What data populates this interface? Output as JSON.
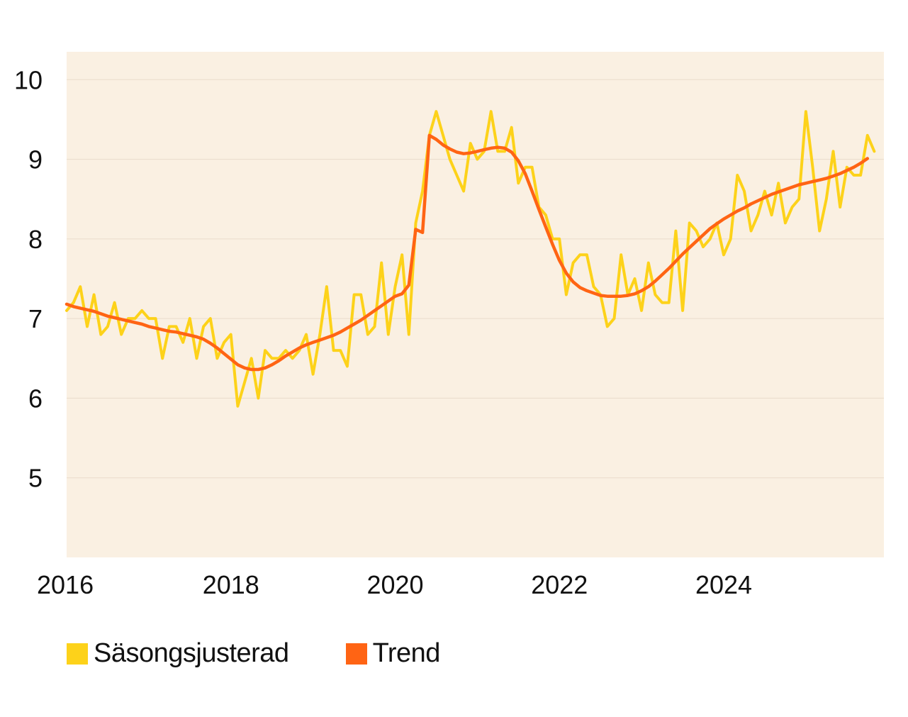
{
  "chart_data": {
    "type": "line",
    "plot_background": "#faf0e2",
    "grid": true,
    "ylim": [
      4,
      10.35
    ],
    "xlim": [
      2016.0,
      2025.95
    ],
    "yticks": [
      5,
      6,
      7,
      8,
      9,
      10
    ],
    "ytick_labels": [
      "5",
      "6",
      "7",
      "8",
      "9",
      "10"
    ],
    "xticks": [
      2016,
      2018,
      2020,
      2022,
      2024
    ],
    "xtick_labels": [
      "2016",
      "2018",
      "2020",
      "2022",
      "2024"
    ],
    "legend_position": "bottom-left",
    "series": [
      {
        "name": "Säsongsjusterad",
        "color": "#fdd21a",
        "x_start": 2016.0,
        "x_step": 0.08333,
        "values": [
          7.1,
          7.2,
          7.4,
          6.9,
          7.3,
          6.8,
          6.9,
          7.2,
          6.8,
          7.0,
          7.0,
          7.1,
          7.0,
          7.0,
          6.5,
          6.9,
          6.9,
          6.7,
          7.0,
          6.5,
          6.9,
          7.0,
          6.5,
          6.7,
          6.8,
          5.9,
          6.2,
          6.5,
          6.0,
          6.6,
          6.5,
          6.5,
          6.6,
          6.5,
          6.6,
          6.8,
          6.3,
          6.8,
          7.4,
          6.6,
          6.6,
          6.4,
          7.3,
          7.3,
          6.8,
          6.9,
          7.7,
          6.8,
          7.4,
          7.8,
          6.8,
          8.2,
          8.6,
          9.3,
          9.6,
          9.3,
          9.0,
          8.8,
          8.6,
          9.2,
          9.0,
          9.1,
          9.6,
          9.1,
          9.1,
          9.4,
          8.7,
          8.9,
          8.9,
          8.4,
          8.3,
          8.0,
          8.0,
          7.3,
          7.7,
          7.8,
          7.8,
          7.4,
          7.3,
          6.9,
          7.0,
          7.8,
          7.3,
          7.5,
          7.1,
          7.7,
          7.3,
          7.2,
          7.2,
          8.1,
          7.1,
          8.2,
          8.1,
          7.9,
          8.0,
          8.2,
          7.8,
          8.0,
          8.8,
          8.6,
          8.1,
          8.3,
          8.6,
          8.3,
          8.7,
          8.2,
          8.4,
          8.5,
          9.6,
          8.9,
          8.1,
          8.5,
          9.1,
          8.4,
          8.9,
          8.8,
          8.8,
          9.3,
          9.1
        ]
      },
      {
        "name": "Trend",
        "color": "#ff6414",
        "x_start": 2016.0,
        "x_step": 0.08333,
        "values": [
          7.18,
          7.15,
          7.13,
          7.11,
          7.09,
          7.06,
          7.03,
          7.01,
          6.99,
          6.97,
          6.95,
          6.93,
          6.9,
          6.88,
          6.86,
          6.84,
          6.83,
          6.81,
          6.79,
          6.77,
          6.74,
          6.69,
          6.63,
          6.56,
          6.49,
          6.42,
          6.38,
          6.36,
          6.36,
          6.38,
          6.42,
          6.47,
          6.53,
          6.58,
          6.63,
          6.67,
          6.7,
          6.73,
          6.76,
          6.79,
          6.83,
          6.88,
          6.93,
          6.98,
          7.04,
          7.1,
          7.16,
          7.22,
          7.28,
          7.31,
          7.42,
          8.12,
          8.08,
          9.3,
          9.25,
          9.18,
          9.13,
          9.09,
          9.07,
          9.08,
          9.1,
          9.12,
          9.14,
          9.15,
          9.14,
          9.09,
          8.98,
          8.82,
          8.6,
          8.37,
          8.15,
          7.93,
          7.73,
          7.57,
          7.46,
          7.39,
          7.35,
          7.32,
          7.29,
          7.28,
          7.28,
          7.28,
          7.29,
          7.31,
          7.35,
          7.4,
          7.47,
          7.55,
          7.63,
          7.72,
          7.81,
          7.89,
          7.97,
          8.05,
          8.13,
          8.19,
          8.25,
          8.3,
          8.35,
          8.39,
          8.44,
          8.48,
          8.52,
          8.56,
          8.59,
          8.62,
          8.65,
          8.68,
          8.7,
          8.72,
          8.74,
          8.76,
          8.79,
          8.82,
          8.86,
          8.9,
          8.95,
          9.01
        ]
      }
    ]
  }
}
